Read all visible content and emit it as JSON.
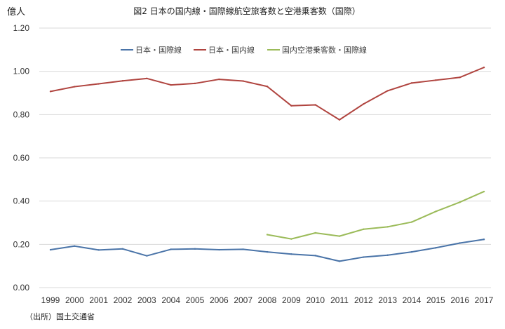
{
  "chart_data": {
    "type": "line",
    "title": "図2 日本の国内線・国際線航空旅客数と空港乗客数（国際）",
    "ylabel": "億人",
    "xlabel": "",
    "source": "（出所）国土交通省",
    "ylim": [
      0,
      1.2
    ],
    "yticks": [
      "0.00",
      "0.20",
      "0.40",
      "0.60",
      "0.80",
      "1.00",
      "1.20"
    ],
    "categories": [
      "1999",
      "2000",
      "2001",
      "2002",
      "2003",
      "2004",
      "2005",
      "2006",
      "2007",
      "2008",
      "2009",
      "2010",
      "2011",
      "2012",
      "2013",
      "2014",
      "2015",
      "2016",
      "2017"
    ],
    "grid": true,
    "legend_position": "top",
    "series": [
      {
        "name": "日本・国際線",
        "color": "#4a74a8",
        "values": [
          0.175,
          0.192,
          0.174,
          0.179,
          0.147,
          0.177,
          0.179,
          0.175,
          0.177,
          0.165,
          0.155,
          0.148,
          0.122,
          0.141,
          0.15,
          0.165,
          0.184,
          0.206,
          0.223
        ]
      },
      {
        "name": "日本・国内線",
        "color": "#b0443f",
        "values": [
          0.907,
          0.929,
          0.942,
          0.956,
          0.967,
          0.937,
          0.944,
          0.963,
          0.955,
          0.93,
          0.841,
          0.845,
          0.776,
          0.849,
          0.91,
          0.946,
          0.959,
          0.972,
          1.018
        ]
      },
      {
        "name": "国内空港乗客数・国際線",
        "color": "#9bbb59",
        "values": [
          null,
          null,
          null,
          null,
          null,
          null,
          null,
          null,
          null,
          0.245,
          0.225,
          0.253,
          0.238,
          0.27,
          0.281,
          0.303,
          0.352,
          0.395,
          0.444
        ]
      }
    ]
  }
}
